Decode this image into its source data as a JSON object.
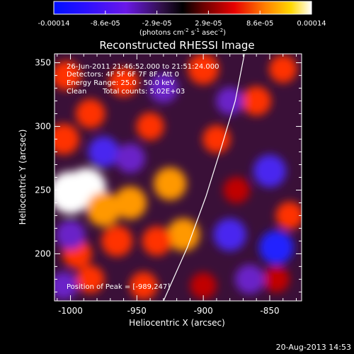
{
  "chart_data": {
    "type": "heatmap",
    "title": "Reconstructed RHESSI Image",
    "xlabel": "Heliocentric X (arcsec)",
    "ylabel": "Heliocentric Y (arcsec)",
    "xlim": [
      -1012,
      -826
    ],
    "ylim": [
      163,
      357
    ],
    "x_ticks": [
      -1000,
      -950,
      -900,
      -850
    ],
    "y_ticks": [
      200,
      250,
      300,
      350
    ],
    "colorbar": {
      "ticks": [
        "-0.00014",
        "-8.6e-05",
        "-2.9e-05",
        "2.9e-05",
        "8.6e-05",
        "0.00014"
      ],
      "units_text": "(photons cm",
      "units_exp1": "-2",
      "units_mid": " s",
      "units_exp2": "-1",
      "units_end": " asec",
      "units_exp3": "-2",
      "units_close": ")",
      "range": [
        -0.00014,
        0.00014
      ]
    },
    "annotations": {
      "time_range": "26-Jun-2011 21:46:52.000 to 21:51:24.000",
      "detectors": "Detectors: 4F 5F 6F 7F 8F, Att 0",
      "energy": "Energy Range: 25.0 - 50.0 keV",
      "method": "Clean",
      "total_counts": "Total counts: 5.02E+03",
      "peak": "Position of Peak = [-989,247]"
    },
    "limb_arc": [
      [
        -930,
        163
      ],
      [
        -912,
        205
      ],
      [
        -898,
        245
      ],
      [
        -886,
        285
      ],
      [
        -876,
        320
      ],
      [
        -869,
        357
      ]
    ],
    "blobs": [
      {
        "x": -1000,
        "y": 248,
        "v": 0.00014
      },
      {
        "x": -988,
        "y": 252,
        "v": 0.00012
      },
      {
        "x": -975,
        "y": 235,
        "v": 9e-05
      },
      {
        "x": -955,
        "y": 240,
        "v": 8e-05
      },
      {
        "x": -1005,
        "y": 290,
        "v": 7e-05
      },
      {
        "x": -985,
        "y": 310,
        "v": 6e-05
      },
      {
        "x": -1003,
        "y": 340,
        "v": 6e-05
      },
      {
        "x": -960,
        "y": 335,
        "v": 6e-05
      },
      {
        "x": -940,
        "y": 300,
        "v": 5e-05
      },
      {
        "x": -925,
        "y": 255,
        "v": 8e-05
      },
      {
        "x": -915,
        "y": 215,
        "v": 8e-05
      },
      {
        "x": -935,
        "y": 210,
        "v": 6e-05
      },
      {
        "x": -965,
        "y": 210,
        "v": 7e-05
      },
      {
        "x": -995,
        "y": 200,
        "v": 6e-05
      },
      {
        "x": -985,
        "y": 180,
        "v": 5e-05
      },
      {
        "x": -945,
        "y": 175,
        "v": 5e-05
      },
      {
        "x": -900,
        "y": 345,
        "v": 7e-05
      },
      {
        "x": -890,
        "y": 290,
        "v": 5e-05
      },
      {
        "x": -860,
        "y": 320,
        "v": 6e-05
      },
      {
        "x": -840,
        "y": 345,
        "v": 5e-05
      },
      {
        "x": -835,
        "y": 230,
        "v": 5e-05
      },
      {
        "x": -875,
        "y": 250,
        "v": 4e-05
      },
      {
        "x": -845,
        "y": 180,
        "v": 4e-05
      },
      {
        "x": -900,
        "y": 175,
        "v": 4e-05
      },
      {
        "x": -975,
        "y": 280,
        "v": -7e-05
      },
      {
        "x": -1000,
        "y": 215,
        "v": -6e-05
      },
      {
        "x": -955,
        "y": 275,
        "v": -6e-05
      },
      {
        "x": -930,
        "y": 330,
        "v": -6e-05
      },
      {
        "x": -880,
        "y": 215,
        "v": -8e-05
      },
      {
        "x": -850,
        "y": 265,
        "v": -8e-05
      },
      {
        "x": -845,
        "y": 205,
        "v": -9e-05
      },
      {
        "x": -880,
        "y": 320,
        "v": -5e-05
      },
      {
        "x": -865,
        "y": 180,
        "v": -6e-05
      },
      {
        "x": -1005,
        "y": 175,
        "v": -5e-05
      }
    ]
  },
  "footer": {
    "timestamp": "20-Aug-2013 14:53"
  }
}
